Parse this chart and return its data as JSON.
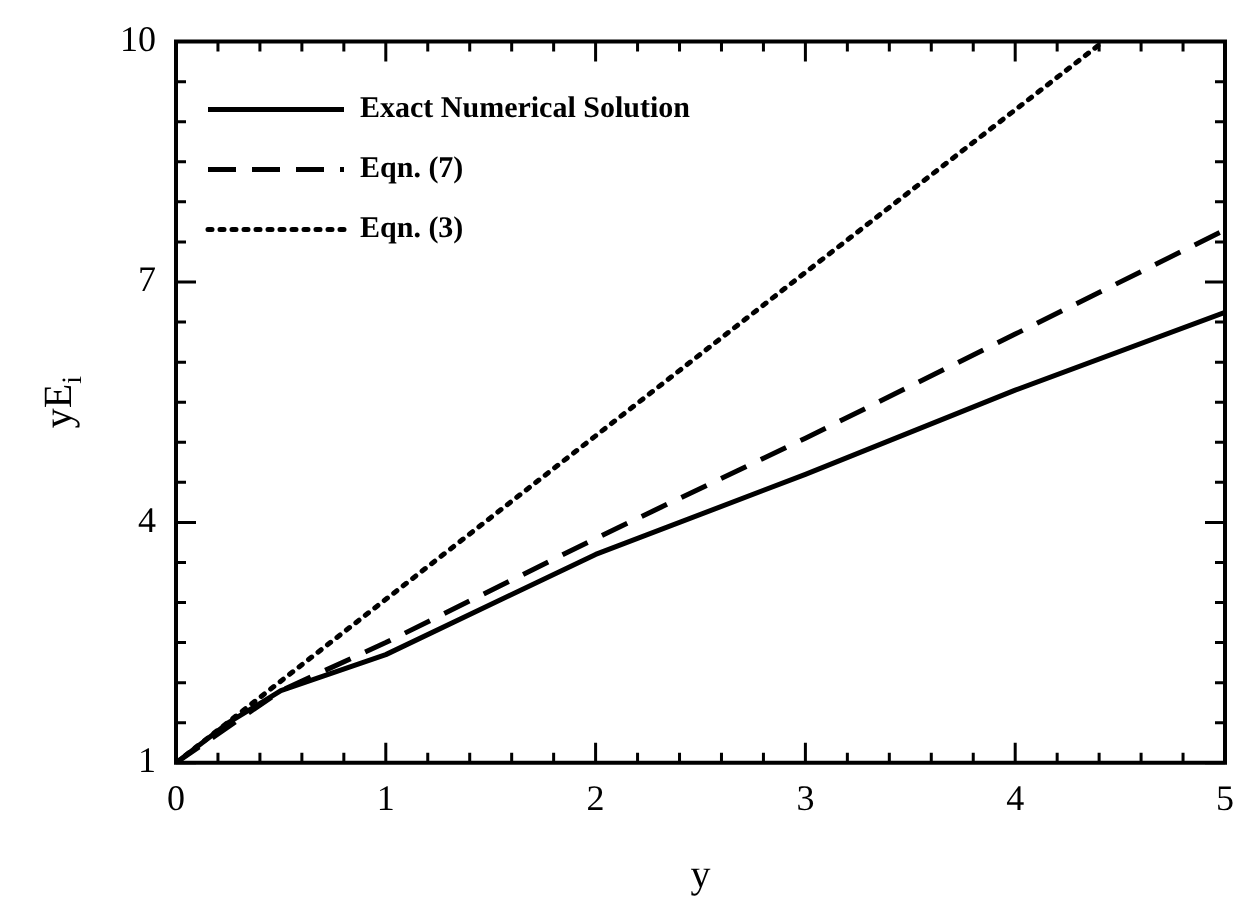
{
  "chart_data": {
    "type": "line",
    "xlabel": "y",
    "ylabel": "yE$_{i}$",
    "xlim": [
      0,
      5
    ],
    "ylim": [
      1,
      10
    ],
    "xticks": [
      0,
      {
        "value": 0.2,
        "label": null
      },
      {
        "value": 0.4,
        "label": null
      },
      {
        "value": 0.6,
        "label": null
      },
      {
        "value": 0.8,
        "label": null
      },
      1,
      {
        "value": 1.2,
        "label": null
      },
      {
        "value": 1.4,
        "label": null
      },
      {
        "value": 1.6,
        "label": null
      },
      {
        "value": 1.8,
        "label": null
      },
      2,
      {
        "value": 2.2,
        "label": null
      },
      {
        "value": 2.4,
        "label": null
      },
      {
        "value": 2.6,
        "label": null
      },
      {
        "value": 2.8,
        "label": null
      },
      3,
      {
        "value": 3.2,
        "label": null
      },
      {
        "value": 3.4,
        "label": null
      },
      {
        "value": 3.6,
        "label": null
      },
      {
        "value": 3.8,
        "label": null
      },
      4,
      {
        "value": 4.2,
        "label": null
      },
      {
        "value": 4.4,
        "label": null
      },
      {
        "value": 4.6,
        "label": null
      },
      {
        "value": 4.8,
        "label": null
      },
      5
    ],
    "yticks": [
      1,
      {
        "value": 1.5,
        "label": null
      },
      {
        "value": 2,
        "label": null
      },
      {
        "value": 2.5,
        "label": null
      },
      {
        "value": 3,
        "label": null
      },
      {
        "value": 3.5,
        "label": null
      },
      4,
      {
        "value": 4.5,
        "label": null
      },
      {
        "value": 5,
        "label": null
      },
      {
        "value": 5.5,
        "label": null
      },
      {
        "value": 6,
        "label": null
      },
      {
        "value": 6.5,
        "label": null
      },
      7,
      {
        "value": 7.5,
        "label": null
      },
      {
        "value": 8,
        "label": null
      },
      {
        "value": 8.5,
        "label": null
      },
      {
        "value": 9,
        "label": null
      },
      {
        "value": 9.5,
        "label": null
      },
      10
    ],
    "grid": false,
    "legend": "top left",
    "marker": "none",
    "series": [
      {
        "name": "Exact Numerical Solution",
        "color": "#000000",
        "line_style": "solid",
        "x": [
          0,
          0.25,
          0.5,
          1,
          2,
          3,
          4,
          5
        ],
        "values": [
          1,
          1.5,
          1.9,
          2.35,
          3.6,
          4.6,
          5.65,
          6.62
        ]
      },
      {
        "name": "Eqn. (7)",
        "color": "#000000",
        "line_style": "dashed",
        "x": [
          0,
          0.5,
          1,
          2,
          3,
          4,
          5
        ],
        "values": [
          1,
          1.9,
          2.5,
          3.8,
          5.05,
          6.35,
          7.65
        ]
      },
      {
        "name": "Eqn. (3)",
        "color": "#000000",
        "line_style": "dotted",
        "x": [
          0,
          1,
          2,
          3,
          4.42
        ],
        "values": [
          1,
          3.04,
          5.08,
          7.12,
          10
        ]
      }
    ]
  }
}
